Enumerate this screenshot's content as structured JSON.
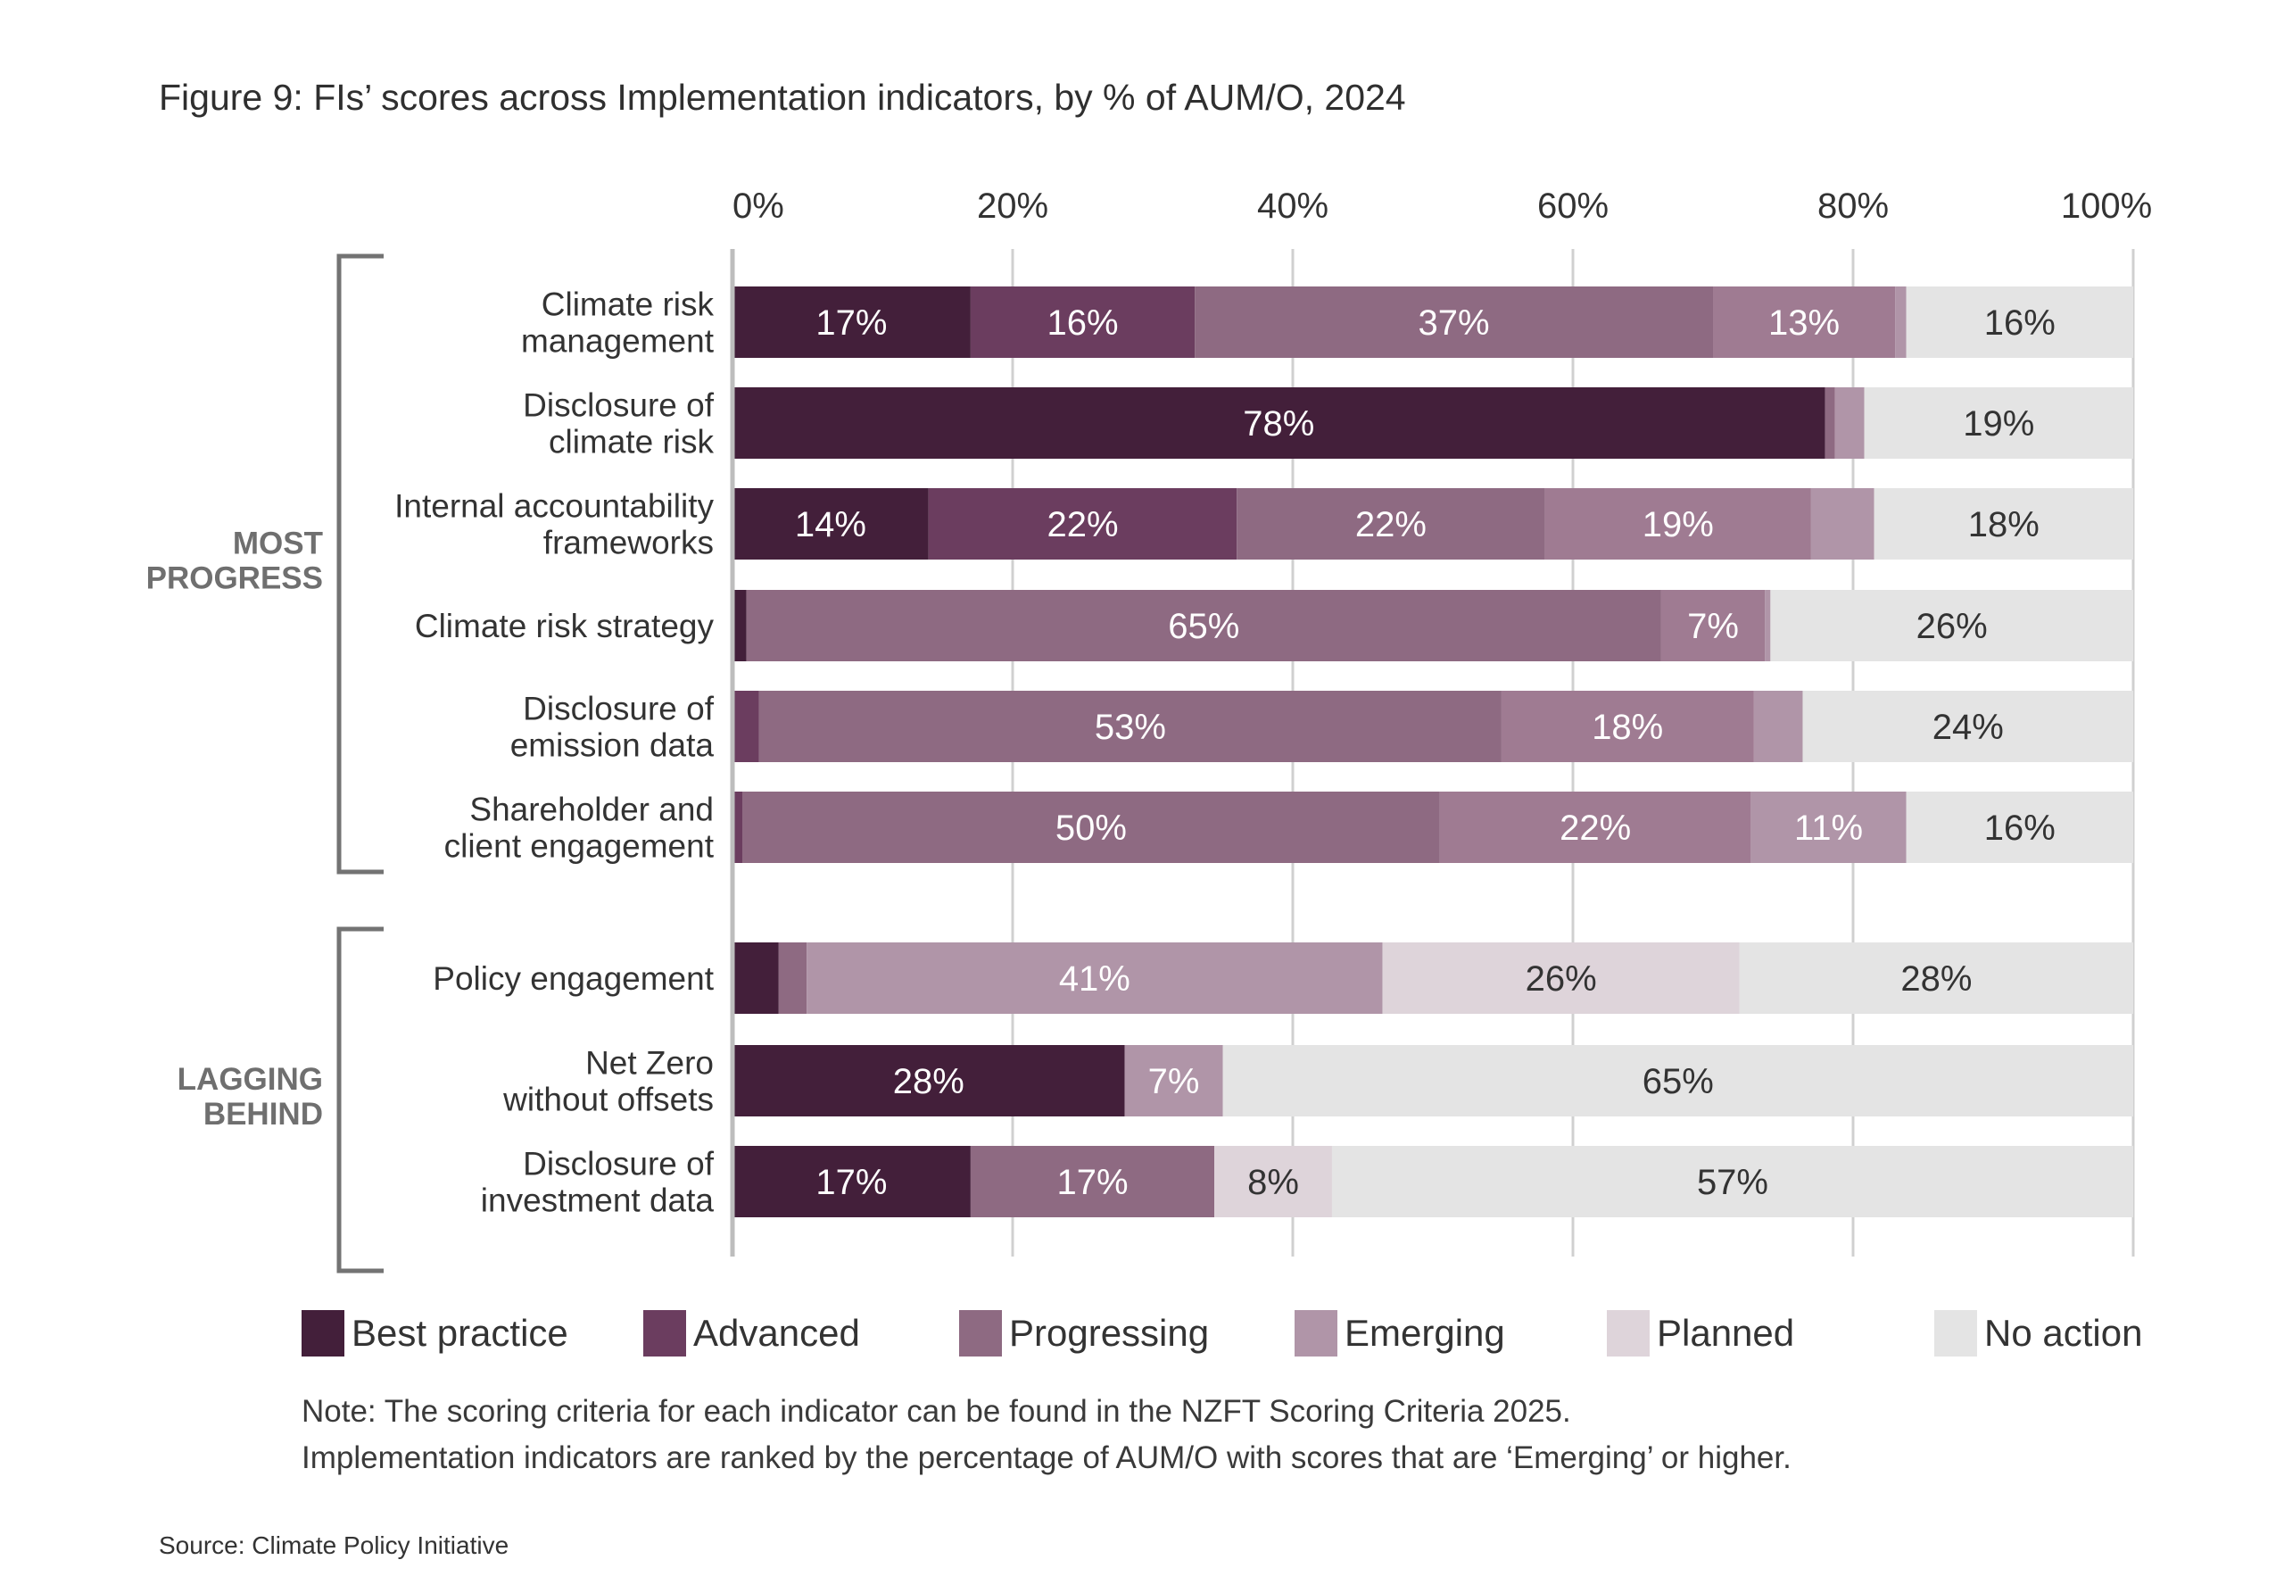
{
  "title": "Figure 9: FIs’ scores across Implementation indicators, by % of AUM/O, 2024",
  "legend": [
    {
      "name": "Best practice",
      "color": "#431f3a"
    },
    {
      "name": "Advanced",
      "color": "#6b3d5f"
    },
    {
      "name": "Progressing",
      "color": "#8e6a82"
    },
    {
      "name": "Emerging",
      "color": "#b095a8"
    },
    {
      "name": "Planned",
      "color": "#ded4da"
    },
    {
      "name": "No action",
      "color": "#e4e4e4"
    }
  ],
  "note_lines": [
    "Note: The scoring criteria for each indicator can be found in the NZFT Scoring Criteria 2025.",
    "Implementation indicators are ranked by the percentage of AUM/O with scores that are ‘Emerging’ or higher."
  ],
  "source": "Source: Climate Policy Initiative",
  "chart_data": {
    "type": "bar",
    "orientation": "horizontal-stacked-100",
    "title": "Figure 9: FIs’ scores across Implementation indicators, by % of AUM/O, 2024",
    "xlabel": "",
    "ylabel": "",
    "xlim": [
      0,
      100
    ],
    "x_ticks": [
      "0%",
      "20%",
      "40%",
      "60%",
      "80%",
      "100%"
    ],
    "x_tick_values": [
      0,
      20,
      40,
      60,
      80,
      100
    ],
    "x_axis_position": "top",
    "grid": true,
    "legend_position": "bottom",
    "level_colors": {
      "Best practice": "#431f3a",
      "Advanced": "#6b3d5f",
      "Progressing": "#8e6a82",
      "Unlabeled (mid)": "#9f7b92",
      "Emerging": "#b095a8",
      "Planned": "#ded4da",
      "No action": "#e4e4e4"
    },
    "groups": [
      {
        "label": "MOST PROGRESS",
        "categories": [
          0,
          1,
          2,
          3,
          4,
          5
        ]
      },
      {
        "label": "LAGGING BEHIND",
        "categories": [
          6,
          7,
          8
        ]
      }
    ],
    "categories": [
      {
        "label": [
          "Climate risk",
          "management"
        ],
        "segments": [
          {
            "level": "Best practice",
            "value": 17,
            "label": "17%"
          },
          {
            "level": "Advanced",
            "value": 16,
            "label": "16%"
          },
          {
            "level": "Progressing",
            "value": 37,
            "label": "37%"
          },
          {
            "level": "Unlabeled (mid)",
            "value": 13,
            "label": "13%"
          },
          {
            "level": "Emerging",
            "value": 0.8,
            "label": ""
          },
          {
            "level": "No action",
            "value": 16.2,
            "label": "16%"
          }
        ]
      },
      {
        "label": [
          "Disclosure of",
          "climate risk"
        ],
        "segments": [
          {
            "level": "Best practice",
            "value": 78,
            "label": "78%"
          },
          {
            "level": "Progressing",
            "value": 0.7,
            "label": ""
          },
          {
            "level": "Emerging",
            "value": 2.1,
            "label": ""
          },
          {
            "level": "No action",
            "value": 19.2,
            "label": "19%"
          }
        ]
      },
      {
        "label": [
          "Internal accountability",
          "frameworks"
        ],
        "segments": [
          {
            "level": "Best practice",
            "value": 14,
            "label": "14%"
          },
          {
            "level": "Advanced",
            "value": 22,
            "label": "22%"
          },
          {
            "level": "Progressing",
            "value": 22,
            "label": "22%"
          },
          {
            "level": "Unlabeled (mid)",
            "value": 19,
            "label": "19%"
          },
          {
            "level": "Emerging",
            "value": 4.5,
            "label": ""
          },
          {
            "level": "No action",
            "value": 18.5,
            "label": "18%"
          }
        ]
      },
      {
        "label": [
          "Climate risk strategy"
        ],
        "segments": [
          {
            "level": "Best practice",
            "value": 1,
            "label": ""
          },
          {
            "level": "Progressing",
            "value": 65.3,
            "label": "65%"
          },
          {
            "level": "Unlabeled (mid)",
            "value": 7.4,
            "label": "7%"
          },
          {
            "level": "Emerging",
            "value": 0.4,
            "label": ""
          },
          {
            "level": "No action",
            "value": 25.9,
            "label": "26%"
          }
        ]
      },
      {
        "label": [
          "Disclosure of",
          "emission data"
        ],
        "segments": [
          {
            "level": "Advanced",
            "value": 1.9,
            "label": ""
          },
          {
            "level": "Progressing",
            "value": 53,
            "label": "53%"
          },
          {
            "level": "Unlabeled (mid)",
            "value": 18,
            "label": "18%"
          },
          {
            "level": "Emerging",
            "value": 3.5,
            "label": ""
          },
          {
            "level": "No action",
            "value": 23.6,
            "label": "24%"
          }
        ]
      },
      {
        "label": [
          "Shareholder and",
          "client engagement"
        ],
        "segments": [
          {
            "level": "Advanced",
            "value": 0.7,
            "label": ""
          },
          {
            "level": "Progressing",
            "value": 49.8,
            "label": "50%"
          },
          {
            "level": "Unlabeled (mid)",
            "value": 22.2,
            "label": "22%"
          },
          {
            "level": "Emerging",
            "value": 11.1,
            "label": "11%"
          },
          {
            "level": "No action",
            "value": 16.2,
            "label": "16%"
          }
        ]
      },
      {
        "label": [
          "Policy engagement"
        ],
        "segments": [
          {
            "level": "Best practice",
            "value": 3.3,
            "label": ""
          },
          {
            "level": "Progressing",
            "value": 2,
            "label": ""
          },
          {
            "level": "Emerging",
            "value": 41.1,
            "label": "41%"
          },
          {
            "level": "Planned",
            "value": 25.5,
            "label": "26%"
          },
          {
            "level": "No action",
            "value": 28.1,
            "label": "28%"
          }
        ]
      },
      {
        "label": [
          "Net Zero",
          "without offsets"
        ],
        "segments": [
          {
            "level": "Best practice",
            "value": 28,
            "label": "28%"
          },
          {
            "level": "Emerging",
            "value": 7,
            "label": "7%"
          },
          {
            "level": "No action",
            "value": 65,
            "label": "65%"
          }
        ]
      },
      {
        "label": [
          "Disclosure of",
          "investment data"
        ],
        "segments": [
          {
            "level": "Best practice",
            "value": 17,
            "label": "17%"
          },
          {
            "level": "Progressing",
            "value": 17.4,
            "label": "17%"
          },
          {
            "level": "Planned",
            "value": 8.4,
            "label": "8%"
          },
          {
            "level": "No action",
            "value": 57.2,
            "label": "57%"
          }
        ]
      }
    ]
  }
}
